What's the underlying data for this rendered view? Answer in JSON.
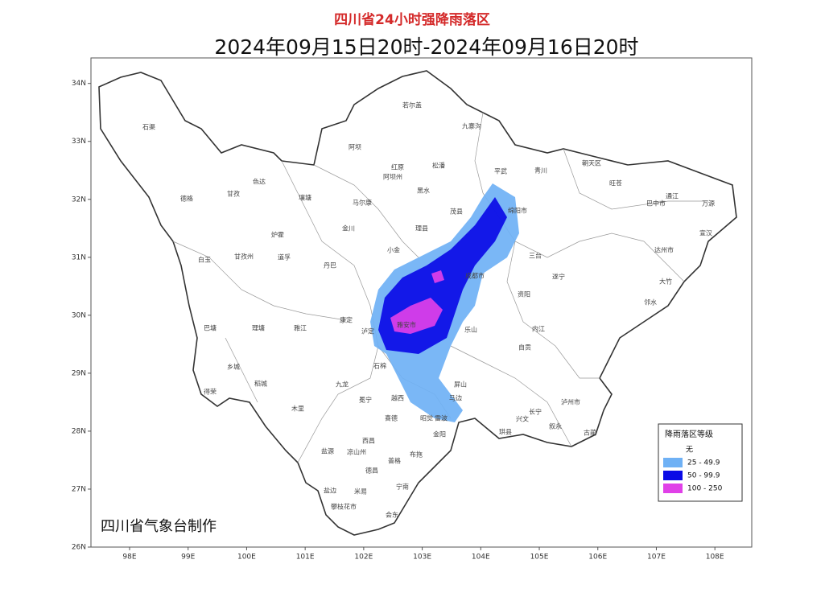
{
  "title": "四川省24小时强降雨落区",
  "subtitle": "2024年09月15日20时-2024年09月16日20时",
  "credit": "四川省气象台制作",
  "axes": {
    "xlim": [
      97.34,
      108.63
    ],
    "ylim": [
      26,
      34.44
    ],
    "xticks": [
      {
        "value": 98,
        "label": "98E"
      },
      {
        "value": 99,
        "label": "99E"
      },
      {
        "value": 100,
        "label": "100E"
      },
      {
        "value": 101,
        "label": "101E"
      },
      {
        "value": 102,
        "label": "102E"
      },
      {
        "value": 103,
        "label": "103E"
      },
      {
        "value": 104,
        "label": "104E"
      },
      {
        "value": 105,
        "label": "105E"
      },
      {
        "value": 106,
        "label": "106E"
      },
      {
        "value": 107,
        "label": "107E"
      },
      {
        "value": 108,
        "label": "108E"
      }
    ],
    "yticks": [
      {
        "value": 26,
        "label": "26N"
      },
      {
        "value": 27,
        "label": "27N"
      },
      {
        "value": 28,
        "label": "28N"
      },
      {
        "value": 29,
        "label": "29N"
      },
      {
        "value": 30,
        "label": "30N"
      },
      {
        "value": 31,
        "label": "31N"
      },
      {
        "value": 32,
        "label": "32N"
      },
      {
        "value": 33,
        "label": "33N"
      },
      {
        "value": 34,
        "label": "34N"
      }
    ]
  },
  "legend": {
    "title": "降雨落区等级",
    "items": [
      {
        "label": "无"
      },
      {
        "label": "25 - 49.9",
        "color": "#6fb1f5"
      },
      {
        "label": "50 - 99.9",
        "color": "#0a0ae6"
      },
      {
        "label": "100 - 250",
        "color": "#e040e8"
      }
    ]
  },
  "places": [
    "石渠",
    "若尔盖",
    "九寨沟",
    "阿坝",
    "红原",
    "阿坝州",
    "松潘",
    "平武",
    "青川",
    "朝天区",
    "旺苍",
    "通江",
    "万源",
    "巴中市",
    "德格",
    "甘孜",
    "色达",
    "壤塘",
    "马尔康",
    "黑水",
    "茂县",
    "绵阳市",
    "炉霍",
    "金川",
    "理县",
    "小金",
    "甘孜州",
    "道孚",
    "白玉",
    "丹巴",
    "达州市",
    "宣汉",
    "大竹",
    "邻水",
    "巴塘",
    "理塘",
    "雅江",
    "康定",
    "泸定",
    "雅安市",
    "乡城",
    "稻城",
    "得荣",
    "九龙",
    "石棉",
    "冕宁",
    "越西",
    "木里",
    "喜德",
    "昭觉",
    "盐源",
    "西昌",
    "凉山州",
    "普格",
    "德昌",
    "米易",
    "宁南",
    "会东",
    "攀枝花市",
    "盐边",
    "乐山",
    "泸州市",
    "叙永",
    "古蔺",
    "长宁",
    "兴文",
    "珙县",
    "屏山",
    "雷波",
    "金阳",
    "布拖",
    "马边",
    "三台",
    "遂宁",
    "自贡",
    "内江",
    "资阳",
    "成都市"
  ]
}
